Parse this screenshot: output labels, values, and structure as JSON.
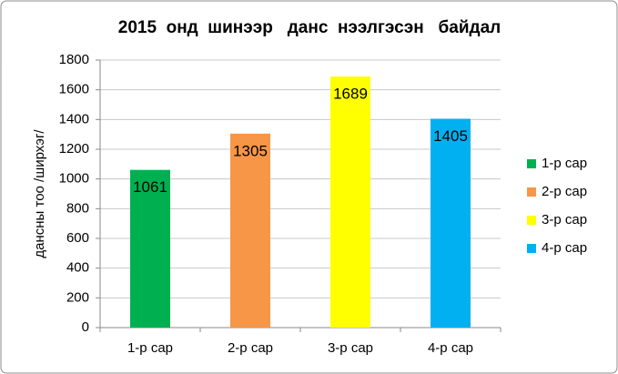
{
  "chart_data": {
    "type": "bar",
    "title": "2015  онд  шинээр   данс  нээлгэсэн   байдал",
    "y_label": "дансны тоо /ширхэг/",
    "categories": [
      "1-р сар",
      "2-р сар",
      "3-р сар",
      "4-р сар"
    ],
    "values": [
      1061,
      1305,
      1689,
      1405
    ],
    "colors": [
      "#00b050",
      "#f79646",
      "#ffff00",
      "#00b0f0"
    ],
    "ylim": [
      0,
      1800
    ],
    "yticks": [
      0,
      200,
      400,
      600,
      800,
      1000,
      1200,
      1400,
      1600,
      1800
    ],
    "grid": true,
    "legend": "right"
  }
}
